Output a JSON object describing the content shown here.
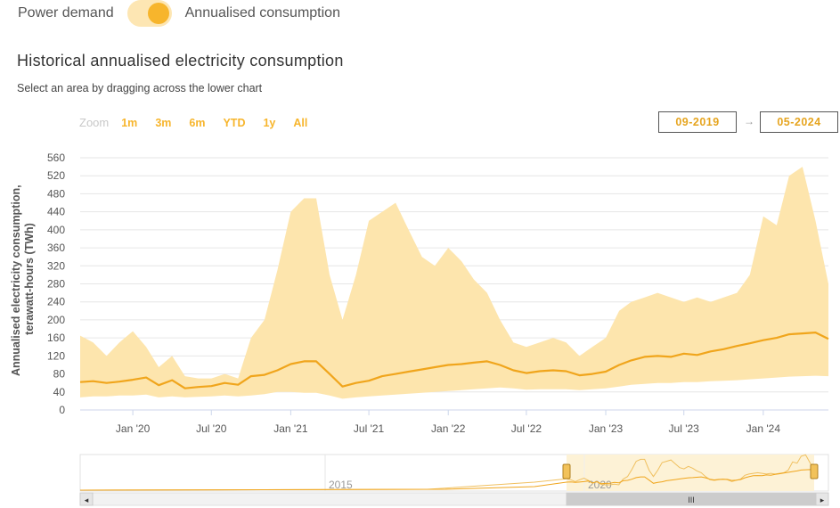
{
  "toggle": {
    "left_label": "Power demand",
    "right_label": "Annualised consumption"
  },
  "header": {
    "title": "Historical annualised electricity consumption",
    "subtitle": "Select an area by dragging across the lower chart"
  },
  "range_selector": {
    "zoom_label": "Zoom",
    "buttons": [
      "1m",
      "3m",
      "6m",
      "YTD",
      "1y",
      "All"
    ],
    "from_date": "09-2019",
    "arrow": "→",
    "to_date": "05-2024"
  },
  "colors": {
    "accent": "#f7b52c",
    "line": "#f0a51c",
    "band": "#fde5ad",
    "navigator_mask": "#fdf2d6"
  },
  "chart_data": {
    "type": "area",
    "ylabel": "Annualised electricity consumption, terawatt-hours (TWh)",
    "ylim": [
      0,
      560
    ],
    "yticks": [
      0,
      40,
      80,
      120,
      160,
      200,
      240,
      280,
      320,
      360,
      400,
      440,
      480,
      520,
      560
    ],
    "xlim": [
      "2019-09-01",
      "2024-05-31"
    ],
    "xticks": [
      {
        "date": "2020-01-01",
        "label": "Jan '20"
      },
      {
        "date": "2020-07-01",
        "label": "Jul '20"
      },
      {
        "date": "2021-01-01",
        "label": "Jan '21"
      },
      {
        "date": "2021-07-01",
        "label": "Jul '21"
      },
      {
        "date": "2022-01-01",
        "label": "Jan '22"
      },
      {
        "date": "2022-07-01",
        "label": "Jul '22"
      },
      {
        "date": "2023-01-01",
        "label": "Jan '23"
      },
      {
        "date": "2023-07-01",
        "label": "Jul '23"
      },
      {
        "date": "2024-01-01",
        "label": "Jan '24"
      }
    ],
    "grid": true,
    "series": [
      {
        "x": [
          "2019-09-01",
          "2019-10-01",
          "2019-11-01",
          "2019-12-01",
          "2020-01-01",
          "2020-02-01",
          "2020-03-01",
          "2020-04-01",
          "2020-05-01",
          "2020-06-01",
          "2020-07-01",
          "2020-08-01",
          "2020-09-01",
          "2020-10-01",
          "2020-11-01",
          "2020-12-01",
          "2021-01-01",
          "2021-02-01",
          "2021-03-01",
          "2021-04-01",
          "2021-05-01",
          "2021-06-01",
          "2021-07-01",
          "2021-08-01",
          "2021-09-01",
          "2021-10-01",
          "2021-11-01",
          "2021-12-01",
          "2022-01-01",
          "2022-02-01",
          "2022-03-01",
          "2022-04-01",
          "2022-05-01",
          "2022-06-01",
          "2022-07-01",
          "2022-08-01",
          "2022-09-01",
          "2022-10-01",
          "2022-11-01",
          "2022-12-01",
          "2023-01-01",
          "2023-02-01",
          "2023-03-01",
          "2023-04-01",
          "2023-05-01",
          "2023-06-01",
          "2023-07-01",
          "2023-08-01",
          "2023-09-01",
          "2023-10-01",
          "2023-11-01",
          "2023-12-01",
          "2024-01-01",
          "2024-02-01",
          "2024-03-01",
          "2024-04-01",
          "2024-05-01",
          "2024-05-31"
        ],
        "estimate": [
          62,
          64,
          60,
          63,
          67,
          72,
          55,
          66,
          48,
          51,
          53,
          60,
          56,
          75,
          78,
          88,
          102,
          108,
          108,
          80,
          52,
          60,
          65,
          75,
          80,
          85,
          90,
          95,
          100,
          102,
          105,
          108,
          100,
          88,
          82,
          86,
          88,
          86,
          77,
          80,
          85,
          100,
          110,
          118,
          120,
          118,
          125,
          122,
          130,
          135,
          142,
          148,
          155,
          160,
          168,
          170,
          172,
          158
        ],
        "low": [
          28,
          30,
          30,
          32,
          32,
          34,
          28,
          30,
          28,
          29,
          30,
          32,
          30,
          32,
          35,
          40,
          40,
          38,
          38,
          32,
          25,
          28,
          30,
          32,
          34,
          36,
          38,
          40,
          42,
          44,
          46,
          48,
          50,
          48,
          45,
          46,
          46,
          46,
          44,
          46,
          48,
          52,
          56,
          58,
          60,
          60,
          62,
          62,
          64,
          65,
          66,
          68,
          70,
          72,
          74,
          75,
          76,
          75
        ],
        "high": [
          165,
          150,
          120,
          150,
          175,
          140,
          95,
          120,
          75,
          70,
          70,
          80,
          70,
          160,
          200,
          310,
          440,
          470,
          470,
          300,
          200,
          300,
          420,
          440,
          460,
          400,
          340,
          320,
          360,
          330,
          290,
          260,
          200,
          150,
          140,
          150,
          160,
          150,
          120,
          140,
          160,
          220,
          240,
          250,
          260,
          250,
          240,
          250,
          240,
          250,
          260,
          300,
          430,
          410,
          520,
          540,
          420,
          280
        ]
      }
    ]
  },
  "navigator": {
    "labels": [
      "2015",
      "2020"
    ],
    "scroll_thumb": "III",
    "scroll_left": "◂",
    "scroll_right": "▸"
  }
}
